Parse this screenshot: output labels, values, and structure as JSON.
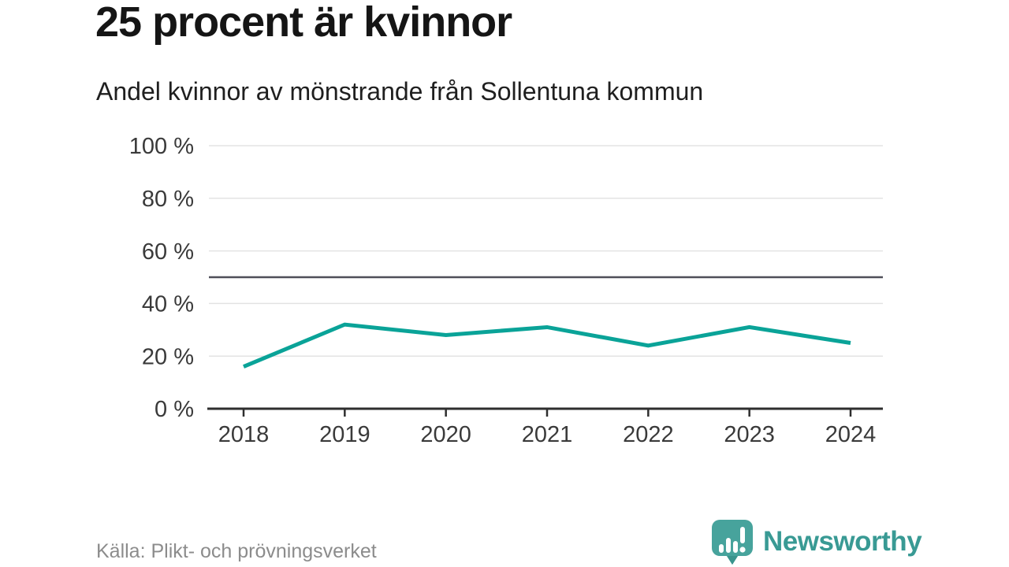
{
  "header": {
    "title": "25 procent är kvinnor",
    "subtitle": "Andel kvinnor av mönstrande från Sollentuna kommun"
  },
  "chart_data": {
    "type": "line",
    "title": "25 procent är kvinnor",
    "subtitle": "Andel kvinnor av mönstrande från Sollentuna kommun",
    "categories": [
      "2018",
      "2019",
      "2020",
      "2021",
      "2022",
      "2023",
      "2024"
    ],
    "series": [
      {
        "name": "Andel kvinnor av mönstrande",
        "values": [
          16,
          32,
          28,
          31,
          24,
          31,
          25
        ]
      }
    ],
    "unit": "%",
    "xlabel": "",
    "ylabel": "",
    "ylim": [
      0,
      100
    ],
    "yticks": [
      0,
      20,
      40,
      60,
      80,
      100
    ],
    "ytick_labels": [
      "0 %",
      "20 %",
      "40 %",
      "60 %",
      "80 %",
      "100 %"
    ],
    "reference_line": 50,
    "grid": true,
    "legend": "none",
    "line_color": "#0aa398",
    "reference_line_color": "#4f4f59",
    "axis_color": "#2e2e2e",
    "grid_color": "#e3e3e3"
  },
  "footer": {
    "source": "Källa: Plikt- och prövningsverket",
    "brand": "Newsworthy",
    "brand_color": "#399a94",
    "logo_icon": "speech-bubble-bar-chart-exclamation"
  }
}
